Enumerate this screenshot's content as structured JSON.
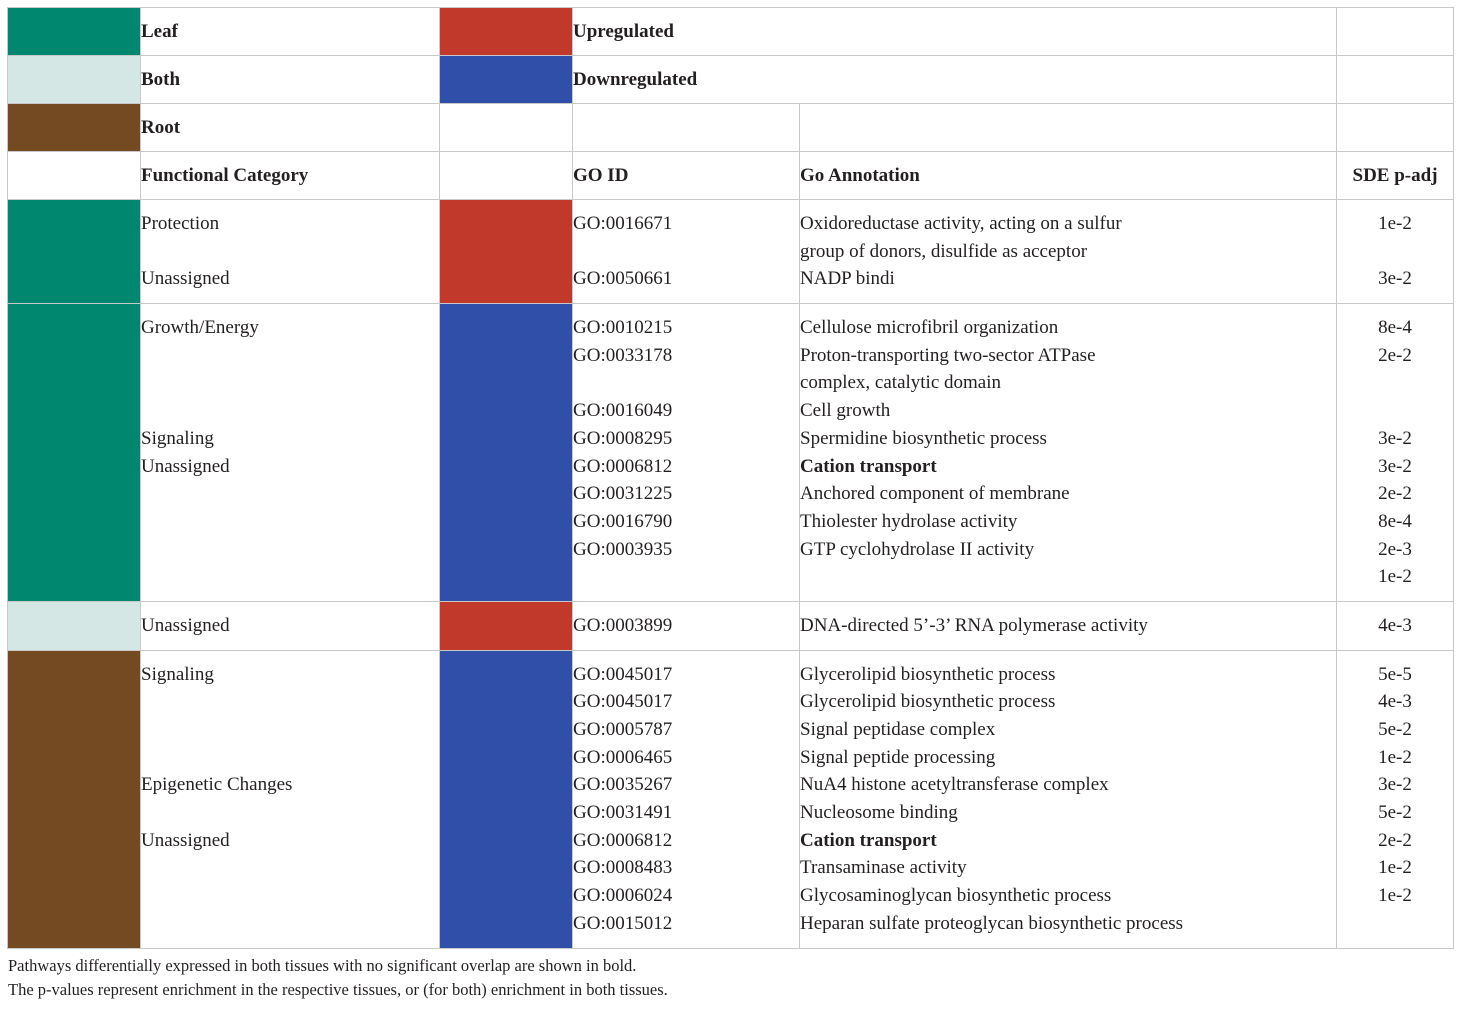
{
  "colors": {
    "leaf": "#00876f",
    "both": "#d4e7e5",
    "root": "#734a22",
    "up": "#c0392b",
    "down": "#2f4fa8"
  },
  "legend": {
    "leaf": "Leaf",
    "both": "Both",
    "root": "Root",
    "up": "Upregulated",
    "down": "Downregulated"
  },
  "headers": {
    "category": "Functional Category",
    "go_id": "GO ID",
    "annotation": "Go Annotation",
    "padj": "SDE p-adj"
  },
  "groups": [
    {
      "categories": [
        "Protection",
        "",
        "Unassigned"
      ],
      "go_ids": [
        "GO:0016671",
        "",
        "GO:0050661"
      ],
      "annotations": [
        "Oxidoreductase activity, acting on a sulfur",
        "group of donors, disulfide as acceptor",
        "NADP bindi"
      ],
      "padj": [
        "1e-2",
        "",
        "3e-2"
      ]
    },
    {
      "categories": [
        "Growth/Energy",
        "",
        "",
        "",
        "Signaling",
        "Unassigned",
        "",
        "",
        "",
        ""
      ],
      "go_ids": [
        "GO:0010215",
        "GO:0033178",
        "",
        "GO:0016049",
        "GO:0008295",
        "GO:0006812",
        "GO:0031225",
        "GO:0016790",
        "GO:0003935",
        ""
      ],
      "annotations": [
        "Cellulose microfibril organization",
        "Proton-transporting two-sector ATPase",
        "complex, catalytic domain",
        "Cell growth",
        "Spermidine biosynthetic process",
        "Cation transport",
        "Anchored component of membrane",
        "Thiolester hydrolase activity",
        "GTP cyclohydrolase II activity",
        ""
      ],
      "padj": [
        "8e-4",
        "2e-2",
        "",
        "",
        "3e-2",
        "3e-2",
        "2e-2",
        "8e-4",
        "2e-3",
        "1e-2"
      ]
    },
    {
      "categories": [
        "Unassigned"
      ],
      "go_ids": [
        "GO:0003899"
      ],
      "annotations": [
        "DNA-directed 5’-3’ RNA polymerase activity"
      ],
      "padj": [
        "4e-3"
      ]
    },
    {
      "categories": [
        "Signaling",
        "",
        "",
        "",
        "Epigenetic Changes",
        "",
        "Unassigned",
        "",
        "",
        ""
      ],
      "go_ids": [
        "GO:0045017",
        "GO:0045017",
        "GO:0005787",
        "GO:0006465",
        "GO:0035267",
        "GO:0031491",
        "GO:0006812",
        "GO:0008483",
        "GO:0006024",
        "GO:0015012"
      ],
      "annotations": [
        "Glycerolipid biosynthetic process",
        "Glycerolipid biosynthetic process",
        "Signal peptidase complex",
        "Signal peptide processing",
        "NuA4 histone acetyltransferase complex",
        "Nucleosome binding",
        "Cation transport",
        "Transaminase activity",
        "Glycosaminoglycan biosynthetic process",
        "Heparan sulfate proteoglycan biosynthetic process"
      ],
      "padj": [
        "5e-5",
        "4e-3",
        "5e-2",
        "1e-2",
        "3e-2",
        "5e-2",
        "2e-2",
        "1e-2",
        "1e-2",
        ""
      ]
    }
  ],
  "footnotes": [
    "Pathways differentially expressed in both tissues with no significant overlap are shown in bold.",
    "The p-values represent enrichment in the respective tissues, or (for both) enrichment in both tissues."
  ]
}
